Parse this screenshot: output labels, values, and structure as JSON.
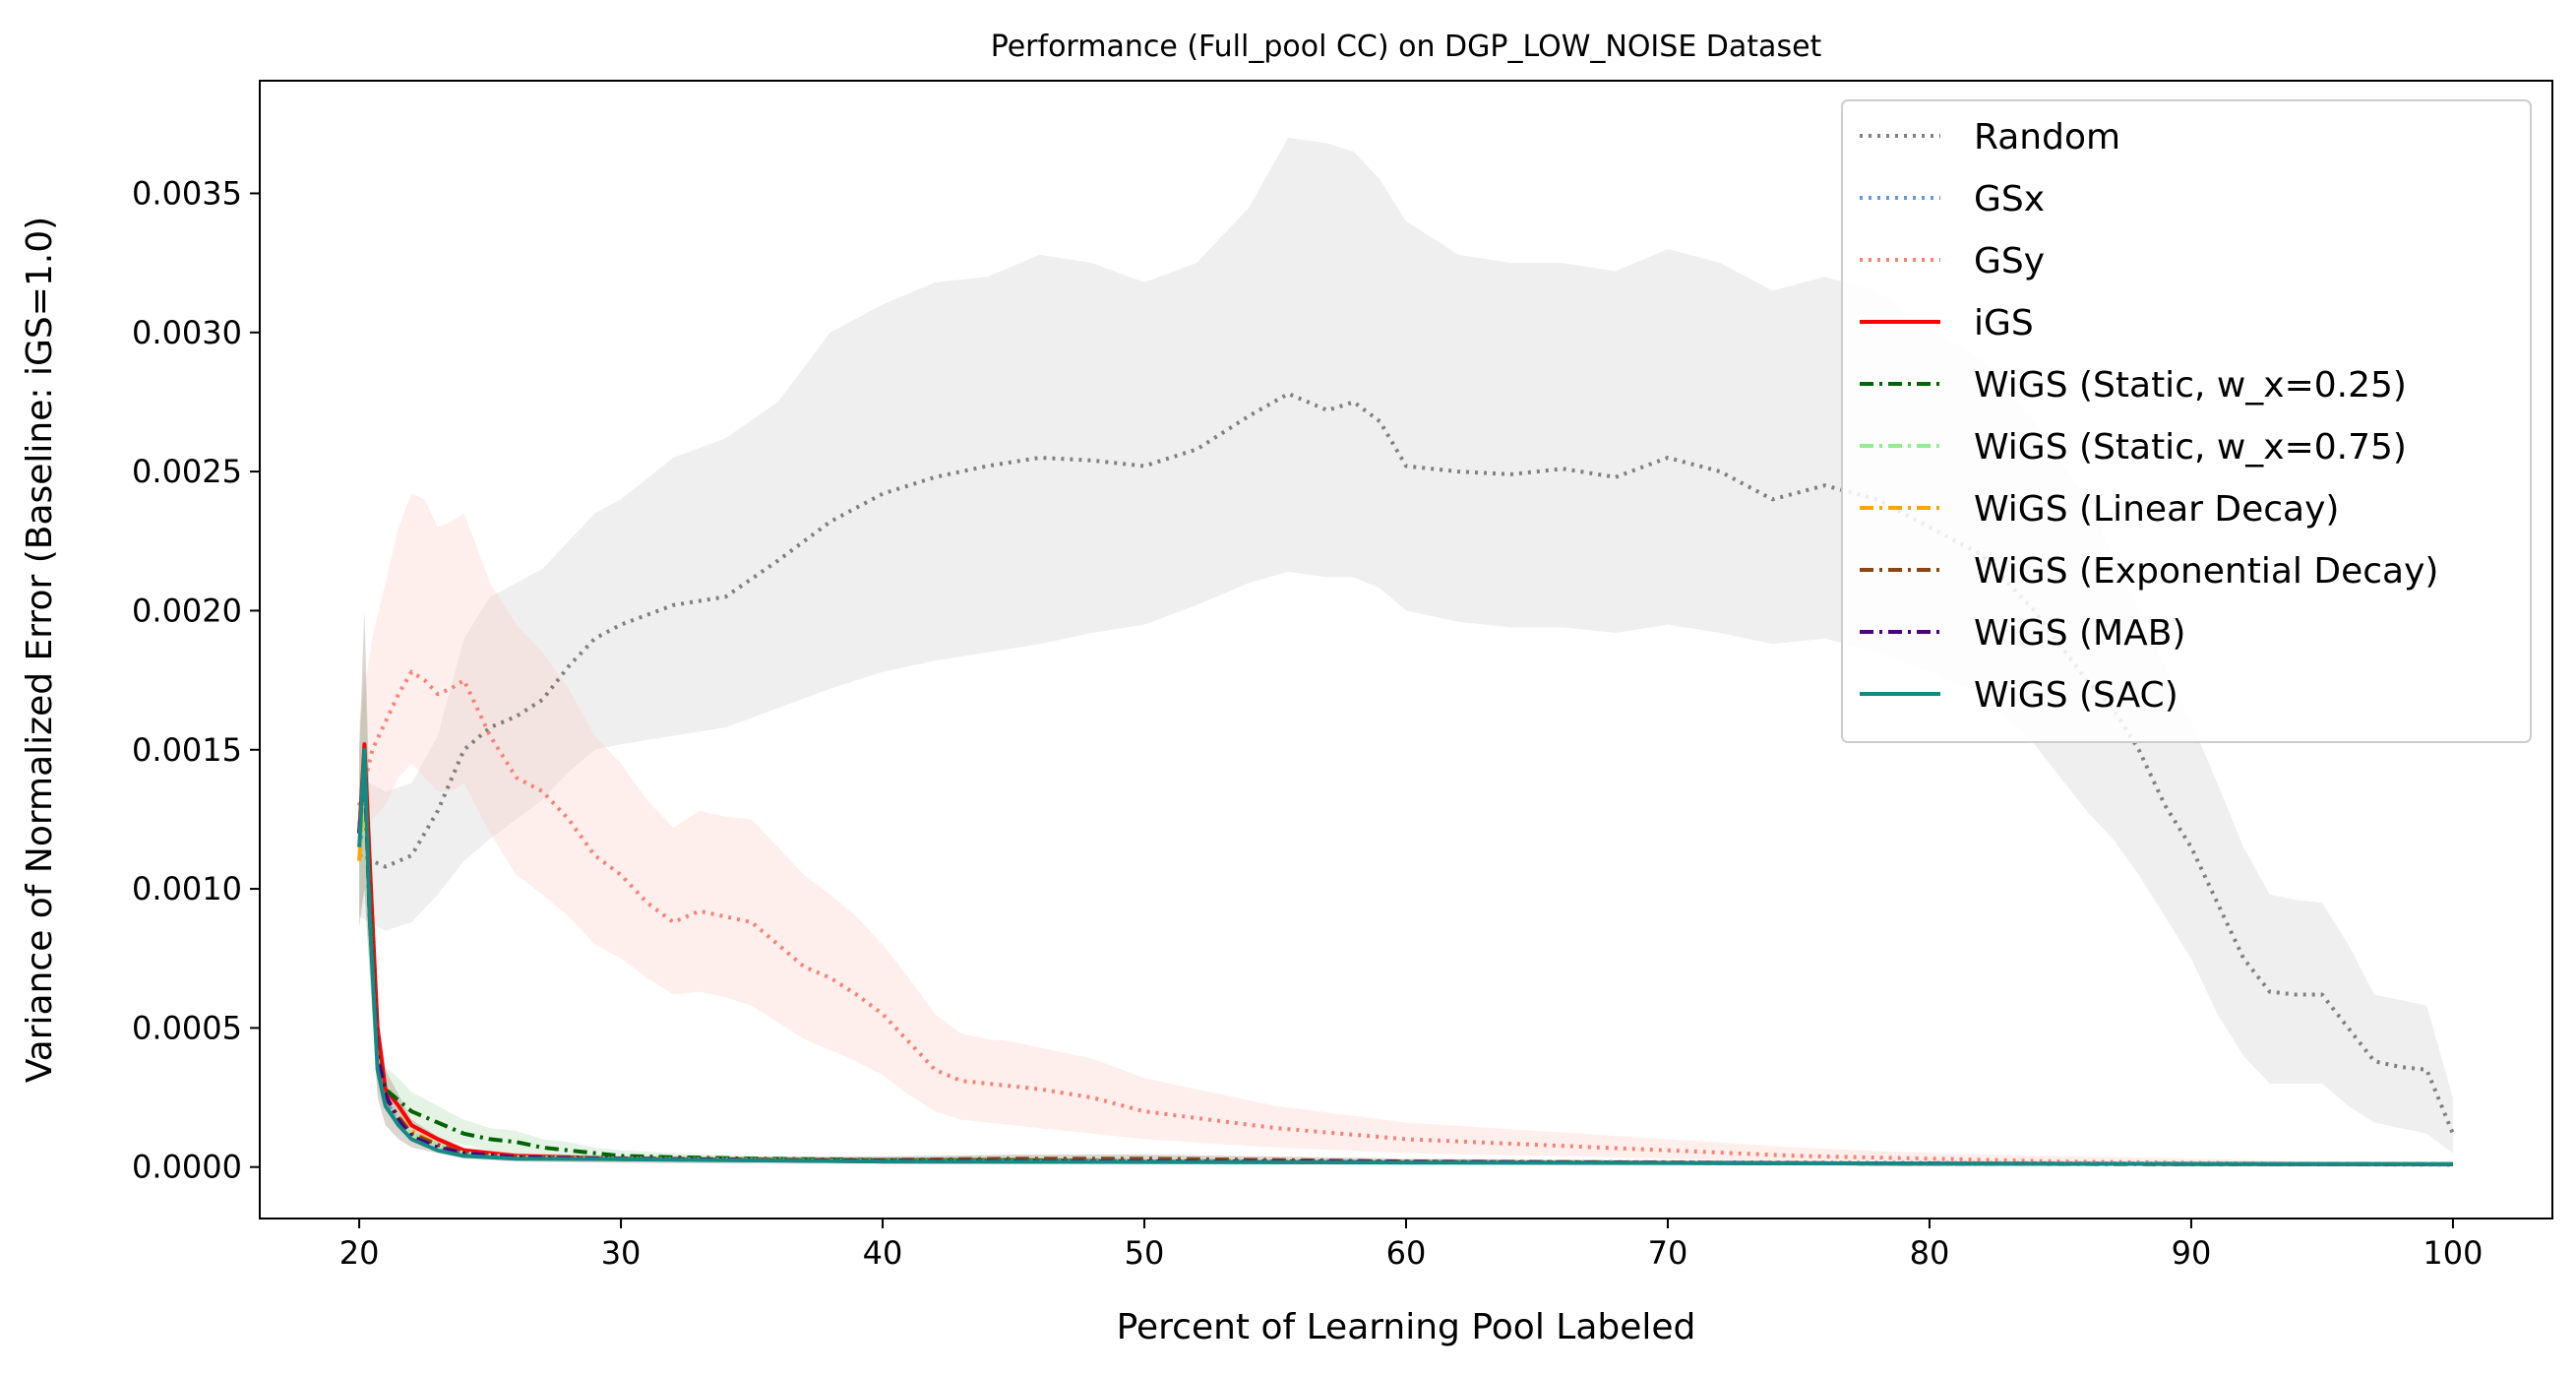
{
  "chart_data": {
    "type": "line",
    "title": "Performance (Full_pool CC) on DGP_LOW_NOISE Dataset",
    "xlabel": "Percent of Learning Pool Labeled",
    "ylabel": "Variance of Normalized Error (Baseline: iGS=1.0)",
    "xlim": [
      16.2,
      103.8
    ],
    "ylim": [
      -0.000185,
      0.003905
    ],
    "xticks": [
      20,
      30,
      40,
      50,
      60,
      70,
      80,
      90,
      100
    ],
    "yticks": [
      0.0,
      0.0005,
      0.001,
      0.0015,
      0.002,
      0.0025,
      0.003,
      0.0035
    ],
    "ytick_labels": [
      "0.0000",
      "0.0005",
      "0.0010",
      "0.0015",
      "0.0020",
      "0.0025",
      "0.0030",
      "0.0035"
    ],
    "legend_position": "upper right",
    "grid": false,
    "series": [
      {
        "name": "Random",
        "color": "#808080",
        "style": "dotted",
        "band_color": "#d0d0d0",
        "x": [
          20,
          21,
          22,
          23,
          24,
          25,
          26,
          27,
          28,
          29,
          30,
          32,
          34,
          36,
          38,
          40,
          42,
          44,
          46,
          48,
          50,
          52,
          54,
          55.5,
          57,
          58,
          59,
          60,
          62,
          64,
          66,
          68,
          70,
          72,
          74,
          76,
          78,
          80,
          82,
          84,
          86,
          87,
          88,
          89,
          90,
          91,
          92,
          93,
          94,
          95,
          96,
          97,
          98,
          99,
          100
        ],
        "y": [
          0.00112,
          0.00108,
          0.00112,
          0.00128,
          0.0015,
          0.00158,
          0.00162,
          0.00168,
          0.0018,
          0.0019,
          0.00195,
          0.00202,
          0.00205,
          0.00218,
          0.00232,
          0.00242,
          0.00248,
          0.00252,
          0.00255,
          0.00254,
          0.00252,
          0.00258,
          0.0027,
          0.00278,
          0.00272,
          0.00275,
          0.00268,
          0.00252,
          0.0025,
          0.00249,
          0.00251,
          0.00248,
          0.00255,
          0.0025,
          0.0024,
          0.00245,
          0.0024,
          0.0023,
          0.0022,
          0.002,
          0.00175,
          0.00165,
          0.0015,
          0.0013,
          0.00115,
          0.00095,
          0.00075,
          0.00063,
          0.00062,
          0.00062,
          0.0005,
          0.00038,
          0.00036,
          0.00035,
          0.00012
        ],
        "lower": [
          0.0009,
          0.00085,
          0.00088,
          0.00098,
          0.0011,
          0.00118,
          0.00125,
          0.00132,
          0.00142,
          0.0015,
          0.00152,
          0.00155,
          0.00158,
          0.00165,
          0.00172,
          0.00178,
          0.00182,
          0.00185,
          0.00188,
          0.00192,
          0.00195,
          0.00202,
          0.0021,
          0.00214,
          0.00212,
          0.00212,
          0.00208,
          0.002,
          0.00196,
          0.00194,
          0.00194,
          0.00192,
          0.00195,
          0.00192,
          0.00188,
          0.0019,
          0.00185,
          0.00178,
          0.0017,
          0.00152,
          0.00128,
          0.00118,
          0.00105,
          0.0009,
          0.00075,
          0.00055,
          0.0004,
          0.0003,
          0.0003,
          0.0003,
          0.00022,
          0.00016,
          0.00014,
          0.00012,
          5e-05
        ],
        "upper": [
          0.0014,
          0.00135,
          0.00138,
          0.00155,
          0.0019,
          0.00205,
          0.0021,
          0.00215,
          0.00225,
          0.00235,
          0.0024,
          0.00255,
          0.00262,
          0.00275,
          0.003,
          0.0031,
          0.00318,
          0.0032,
          0.00328,
          0.00325,
          0.00318,
          0.00325,
          0.00345,
          0.0037,
          0.00368,
          0.00365,
          0.00355,
          0.0034,
          0.00328,
          0.00325,
          0.00325,
          0.00322,
          0.0033,
          0.00325,
          0.00315,
          0.0032,
          0.00315,
          0.00302,
          0.0029,
          0.00268,
          0.0024,
          0.0022,
          0.002,
          0.0018,
          0.0016,
          0.00138,
          0.00115,
          0.00098,
          0.00096,
          0.00095,
          0.0008,
          0.00062,
          0.0006,
          0.00058,
          0.00025
        ]
      },
      {
        "name": "GSx",
        "color": "#6495ed",
        "style": "dotted",
        "x": [
          20,
          20.3,
          20.6,
          21,
          21.5,
          22,
          23,
          25,
          30,
          40,
          60,
          80,
          100
        ],
        "y": [
          0.00115,
          0.0013,
          0.0006,
          0.00025,
          0.00015,
          0.0001,
          6e-05,
          4e-05,
          3e-05,
          2.5e-05,
          2e-05,
          1.5e-05,
          1e-05
        ]
      },
      {
        "name": "GSy",
        "color": "#fa8072",
        "style": "dotted",
        "band_color": "#fbd0c8",
        "x": [
          20,
          20.5,
          21,
          21.5,
          22,
          22.5,
          23,
          23.5,
          24,
          25,
          26,
          27,
          28,
          29,
          30,
          31,
          32,
          33,
          34,
          35,
          36,
          37,
          38,
          39,
          40,
          41,
          42,
          43,
          44,
          45,
          46,
          48,
          50,
          55,
          60,
          65,
          70,
          75,
          80,
          85,
          90,
          95,
          100
        ],
        "y": [
          0.0013,
          0.0015,
          0.0016,
          0.0017,
          0.00178,
          0.00175,
          0.0017,
          0.00172,
          0.00175,
          0.00155,
          0.0014,
          0.00135,
          0.00125,
          0.00112,
          0.00105,
          0.00095,
          0.00088,
          0.00092,
          0.0009,
          0.00088,
          0.0008,
          0.00072,
          0.00068,
          0.00062,
          0.00055,
          0.00045,
          0.00035,
          0.00031,
          0.0003,
          0.00029,
          0.00028,
          0.00025,
          0.0002,
          0.00014,
          0.0001,
          8e-05,
          6e-05,
          4e-05,
          3e-05,
          2e-05,
          1.5e-05,
          1e-05,
          8e-06
        ],
        "lower": [
          0.0011,
          0.00125,
          0.0013,
          0.0014,
          0.00145,
          0.0014,
          0.00135,
          0.00135,
          0.00138,
          0.0012,
          0.00105,
          0.00098,
          0.0009,
          0.0008,
          0.00075,
          0.00068,
          0.00062,
          0.00063,
          0.00061,
          0.00058,
          0.00052,
          0.00046,
          0.00042,
          0.00038,
          0.00033,
          0.00026,
          0.0002,
          0.00017,
          0.00016,
          0.00015,
          0.00014,
          0.00012,
          0.0001,
          7e-05,
          5e-05,
          4e-05,
          3e-05,
          2e-05,
          1.5e-05,
          1e-05,
          8e-06,
          5e-06,
          4e-06
        ],
        "upper": [
          0.0016,
          0.0019,
          0.0021,
          0.0023,
          0.00242,
          0.0024,
          0.0023,
          0.00232,
          0.00235,
          0.0021,
          0.00195,
          0.00185,
          0.00172,
          0.00155,
          0.00145,
          0.00132,
          0.00122,
          0.00128,
          0.00126,
          0.00125,
          0.00115,
          0.00105,
          0.00098,
          0.0009,
          0.0008,
          0.00068,
          0.00055,
          0.00048,
          0.00046,
          0.00045,
          0.00043,
          0.00039,
          0.00032,
          0.00022,
          0.00016,
          0.00013,
          0.0001,
          7e-05,
          5e-05,
          4e-05,
          3e-05,
          2e-05,
          1.5e-05
        ]
      },
      {
        "name": "iGS",
        "color": "#ff0000",
        "style": "solid",
        "x": [
          20,
          20.2,
          20.4,
          20.7,
          21,
          21.5,
          22,
          23,
          24,
          26,
          30,
          40,
          60,
          80,
          100
        ],
        "y": [
          0.0012,
          0.00152,
          0.0011,
          0.0005,
          0.00028,
          0.00022,
          0.00015,
          0.0001,
          6e-05,
          4e-05,
          3e-05,
          2e-05,
          1.8e-05,
          1.2e-05,
          1e-05
        ]
      },
      {
        "name": "WiGS (Static, w_x=0.25)",
        "color": "#006400",
        "style": "dashdot",
        "band_color": "#b5dcb5",
        "x": [
          20,
          20.2,
          20.4,
          20.7,
          21,
          21.5,
          22,
          23,
          24,
          25,
          26,
          27,
          28,
          29,
          30,
          32,
          35,
          40,
          45,
          50,
          60,
          70,
          80,
          90,
          100
        ],
        "y": [
          0.0012,
          0.0014,
          0.001,
          0.0004,
          0.00028,
          0.00024,
          0.0002,
          0.00016,
          0.00012,
          0.0001,
          9e-05,
          7e-05,
          6e-05,
          5e-05,
          4e-05,
          3.5e-05,
          3e-05,
          2.5e-05,
          2.5e-05,
          2e-05,
          1.8e-05,
          1.5e-05,
          1.2e-05,
          1e-05,
          1e-05
        ],
        "lower": [
          0.0009,
          0.001,
          0.0007,
          0.00028,
          0.0002,
          0.00017,
          0.00014,
          0.0001,
          8e-05,
          6e-05,
          5e-05,
          4e-05,
          3e-05,
          3e-05,
          2.5e-05,
          2e-05,
          2e-05,
          1.5e-05,
          1.5e-05,
          1.2e-05,
          1e-05,
          8e-06,
          6e-06,
          5e-06,
          5e-06
        ],
        "upper": [
          0.0015,
          0.0018,
          0.0013,
          0.00055,
          0.00036,
          0.00032,
          0.00027,
          0.00022,
          0.00017,
          0.00014,
          0.00013,
          0.0001,
          9e-05,
          7e-05,
          6e-05,
          5e-05,
          4e-05,
          3.5e-05,
          3.5e-05,
          3e-05,
          2.5e-05,
          2e-05,
          1.8e-05,
          1.5e-05,
          1.5e-05
        ]
      },
      {
        "name": "WiGS (Static, w_x=0.75)",
        "color": "#90ee90",
        "style": "dashdot",
        "x": [
          20,
          20.2,
          20.4,
          20.7,
          21,
          21.5,
          22,
          23,
          24,
          26,
          30,
          40,
          60,
          80,
          100
        ],
        "y": [
          0.0011,
          0.0013,
          0.0009,
          0.00035,
          0.00022,
          0.00016,
          0.00012,
          8e-05,
          5e-05,
          3.5e-05,
          3e-05,
          2.2e-05,
          1.8e-05,
          1.2e-05,
          1e-05
        ]
      },
      {
        "name": "WiGS (Linear Decay)",
        "color": "#ffa500",
        "style": "dashdot",
        "x": [
          20,
          20.2,
          20.4,
          20.7,
          21,
          21.5,
          22,
          23,
          24,
          26,
          30,
          40,
          60,
          80,
          100
        ],
        "y": [
          0.0011,
          0.0014,
          0.0009,
          0.00038,
          0.00025,
          0.00018,
          0.00013,
          8e-05,
          5e-05,
          3.5e-05,
          3e-05,
          2.5e-05,
          2e-05,
          1.2e-05,
          1e-05
        ]
      },
      {
        "name": "WiGS (Exponential Decay)",
        "color": "#8b4513",
        "style": "dashdot",
        "band_color": "#9a8a7a",
        "x": [
          20,
          20.2,
          20.4,
          20.7,
          21,
          21.5,
          22,
          23,
          24,
          26,
          30,
          35,
          40,
          45,
          50,
          55,
          60,
          80,
          100
        ],
        "y": [
          0.0012,
          0.0015,
          0.001,
          0.0004,
          0.00025,
          0.00018,
          0.00012,
          8e-05,
          5e-05,
          3.5e-05,
          2.8e-05,
          2.5e-05,
          2.5e-05,
          3e-05,
          3e-05,
          2.5e-05,
          2e-05,
          1.2e-05,
          1e-05
        ],
        "lower": [
          0.00086,
          0.001,
          0.0007,
          0.00025,
          0.00015,
          0.0001,
          7e-05,
          5e-05,
          3e-05,
          2e-05,
          1.5e-05,
          1.2e-05,
          1.2e-05,
          1.5e-05,
          1.5e-05,
          1.2e-05,
          1e-05,
          6e-06,
          5e-06
        ],
        "upper": [
          0.0015,
          0.002,
          0.0013,
          0.00055,
          0.00035,
          0.00026,
          0.00017,
          0.00011,
          7e-05,
          5e-05,
          4e-05,
          3.8e-05,
          3.8e-05,
          4.5e-05,
          4.5e-05,
          3.8e-05,
          3e-05,
          1.8e-05,
          1.5e-05
        ]
      },
      {
        "name": "WiGS (MAB)",
        "color": "#4b0082",
        "style": "dashdot",
        "x": [
          20,
          20.2,
          20.4,
          20.7,
          21,
          21.5,
          22,
          23,
          24,
          26,
          30,
          40,
          60,
          80,
          100
        ],
        "y": [
          0.0012,
          0.00145,
          0.0009,
          0.0004,
          0.00026,
          0.00017,
          0.00011,
          7e-05,
          5e-05,
          3.5e-05,
          3e-05,
          2.2e-05,
          1.8e-05,
          1.2e-05,
          1e-05
        ]
      },
      {
        "name": "WiGS (SAC)",
        "color": "#148a84",
        "style": "solid",
        "x": [
          20,
          20.2,
          20.4,
          20.7,
          21,
          21.5,
          22,
          23,
          24,
          26,
          30,
          40,
          60,
          80,
          100
        ],
        "y": [
          0.00115,
          0.0015,
          0.0009,
          0.00035,
          0.00022,
          0.00015,
          0.0001,
          6e-05,
          4e-05,
          3e-05,
          2.8e-05,
          2e-05,
          1.6e-05,
          1.2e-05,
          1e-05
        ]
      }
    ]
  }
}
